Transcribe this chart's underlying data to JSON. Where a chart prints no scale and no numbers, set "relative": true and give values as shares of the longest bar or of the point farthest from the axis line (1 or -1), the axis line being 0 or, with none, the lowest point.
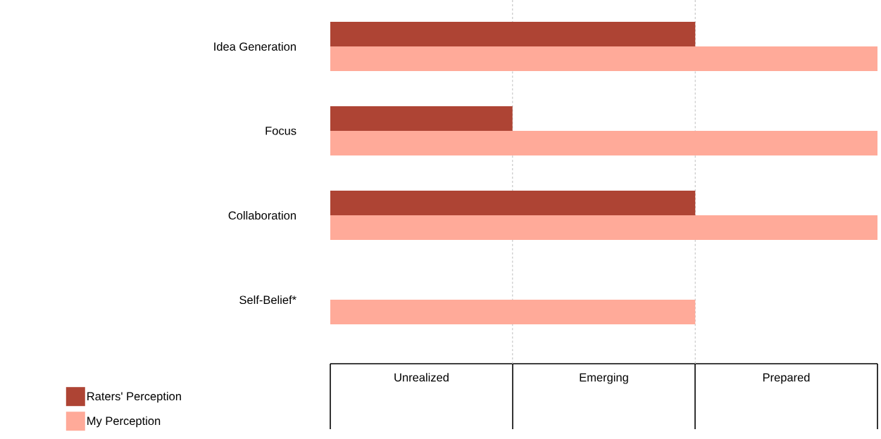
{
  "chart_data": {
    "type": "bar",
    "orientation": "horizontal",
    "relative": true,
    "categories": [
      "Idea Generation",
      "Focus",
      "Collaboration",
      "Self-Belief*"
    ],
    "series": [
      {
        "name": "Raters' Perception",
        "color": "#ae4434",
        "values": [
          0.667,
          0.333,
          0.667,
          null
        ]
      },
      {
        "name": "My Perception",
        "color": "#ffaa99",
        "values": [
          1,
          1,
          1,
          0.667
        ]
      }
    ],
    "annotations": [
      "Unrealized",
      "Emerging",
      "Prepared"
    ],
    "ref_lines": [
      {
        "axis": "x",
        "value": 0.333,
        "color": "#cccccc",
        "line_style": "dashed"
      },
      {
        "axis": "x",
        "value": 0.667,
        "color": "#cccccc",
        "line_style": "dashed"
      }
    ],
    "legend": "bottom left"
  }
}
